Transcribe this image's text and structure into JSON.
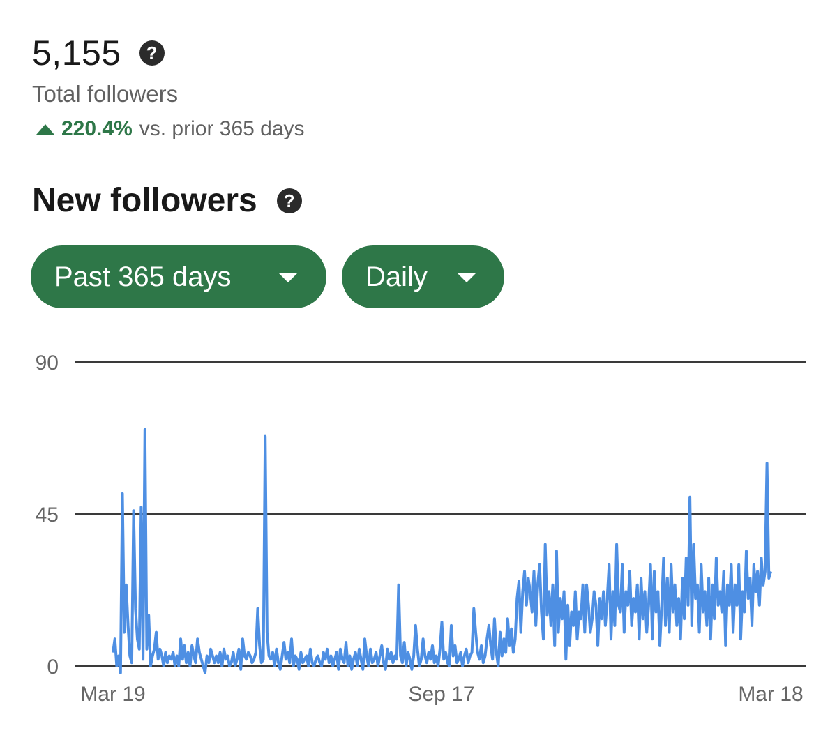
{
  "summary": {
    "total_count": "5,155",
    "total_label": "Total followers",
    "change_percent": "220.4%",
    "change_suffix": "vs. prior 365 days",
    "change_direction": "up"
  },
  "section": {
    "title": "New followers"
  },
  "filters": {
    "range_label": "Past 365 days",
    "interval_label": "Daily"
  },
  "colors": {
    "accent_green": "#2e7748",
    "line_blue": "#4e8fe3",
    "help_icon": "#2b2b2b"
  },
  "icons": [
    "help-icon",
    "caret-down-icon",
    "up-triangle-icon"
  ],
  "chart_data": {
    "type": "line",
    "title": "",
    "xlabel": "",
    "ylabel": "",
    "ylim": [
      0,
      90
    ],
    "yticks": [
      0,
      45,
      90
    ],
    "xticks": [
      "Mar 19",
      "Sep 17",
      "Mar 18"
    ],
    "grid": true,
    "series": [
      {
        "values": [
          4,
          8,
          0,
          3,
          -2,
          51,
          10,
          24,
          12,
          3,
          1,
          46,
          17,
          8,
          5,
          47,
          2,
          70,
          5,
          15,
          0,
          3,
          5,
          10,
          2,
          5,
          3,
          0,
          4,
          1,
          3,
          2,
          4,
          0,
          3,
          0,
          8,
          2,
          6,
          1,
          4,
          0,
          6,
          3,
          1,
          8,
          4,
          2,
          0,
          -2,
          3,
          1,
          5,
          3,
          1,
          3,
          1,
          4,
          0,
          5,
          2,
          3,
          0,
          1,
          4,
          0,
          2,
          5,
          -1,
          8,
          3,
          2,
          4,
          3,
          1,
          2,
          4,
          17,
          6,
          1,
          2,
          68,
          10,
          3,
          2,
          4,
          0,
          5,
          1,
          -1,
          3,
          7,
          2,
          4,
          1,
          8,
          0,
          3,
          2,
          -1,
          4,
          1,
          2,
          3,
          0,
          5,
          1,
          0,
          2,
          3,
          1,
          0,
          4,
          2,
          5,
          1,
          3,
          0,
          2,
          4,
          -1,
          5,
          2,
          1,
          7,
          0,
          3,
          -1,
          2,
          4,
          0,
          5,
          2,
          -1,
          8,
          3,
          0,
          5,
          1,
          2,
          4,
          0,
          3,
          6,
          1,
          -1,
          5,
          2,
          4,
          1,
          3,
          2,
          24,
          3,
          1,
          7,
          0,
          4,
          2,
          -1,
          3,
          12,
          5,
          0,
          2,
          8,
          3,
          1,
          4,
          2,
          6,
          1,
          3,
          0,
          5,
          13,
          2,
          4,
          1,
          0,
          12,
          3,
          6,
          1,
          2,
          4,
          0,
          3,
          5,
          1,
          3,
          4,
          17,
          10,
          4,
          2,
          6,
          1,
          3,
          8,
          12,
          6,
          2,
          14,
          4,
          0,
          10,
          3,
          8,
          4,
          14,
          6,
          11,
          4,
          8,
          20,
          25,
          10,
          22,
          28,
          18,
          26,
          22,
          16,
          28,
          12,
          24,
          30,
          16,
          8,
          36,
          15,
          22,
          12,
          24,
          6,
          34,
          10,
          20,
          14,
          22,
          2,
          18,
          6,
          16,
          12,
          22,
          8,
          16,
          14,
          24,
          10,
          24,
          18,
          10,
          14,
          22,
          18,
          6,
          20,
          14,
          22,
          12,
          20,
          30,
          8,
          22,
          12,
          36,
          18,
          16,
          30,
          10,
          22,
          18,
          28,
          12,
          20,
          16,
          24,
          8,
          26,
          14,
          22,
          10,
          18,
          30,
          8,
          28,
          16,
          22,
          6,
          18,
          32,
          12,
          26,
          10,
          30,
          16,
          24,
          12,
          20,
          8,
          26,
          14,
          32,
          18,
          50,
          12,
          36,
          20,
          24,
          10,
          30,
          16,
          22,
          12,
          26,
          8,
          24,
          14,
          32,
          18,
          22,
          16,
          28,
          6,
          24,
          18,
          30,
          10,
          24,
          18,
          30,
          8,
          22,
          16,
          34,
          20,
          26,
          12,
          30,
          22,
          28,
          18,
          32,
          24,
          28,
          60,
          26,
          28
        ]
      }
    ]
  }
}
